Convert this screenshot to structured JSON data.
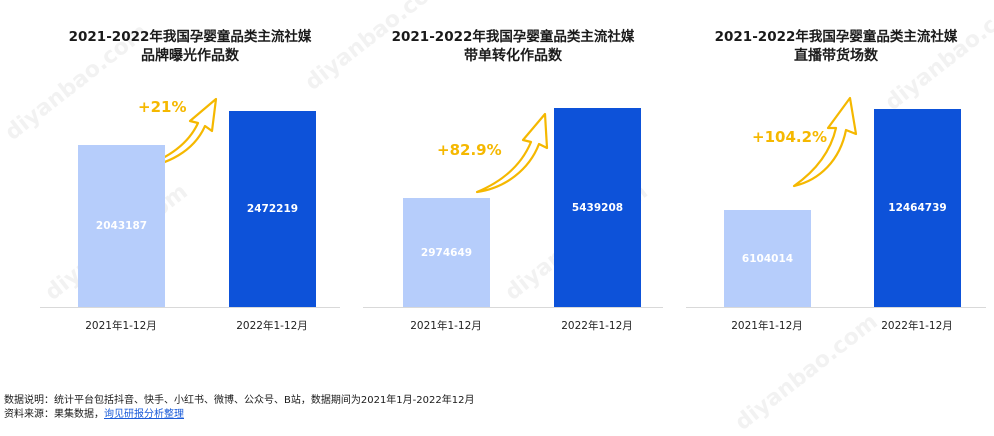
{
  "colors": {
    "bar_2021": "#b6cdfb",
    "bar_2022": "#0d52d9",
    "growth": "#f5b800"
  },
  "chart_data": [
    {
      "type": "bar",
      "title": "2021-2022年我国孕婴童品类主流社媒",
      "subtitle": "品牌曝光作品数",
      "categories": [
        "2021年1-12月",
        "2022年1-12月"
      ],
      "values": [
        2043187,
        2472219
      ],
      "value_labels": [
        "2043187",
        "2472219"
      ],
      "growth": "+21%",
      "ylim": [
        0,
        2900000
      ]
    },
    {
      "type": "bar",
      "title": "2021-2022年我国孕婴童品类主流社媒",
      "subtitle": "带单转化作品数",
      "categories": [
        "2021年1-12月",
        "2022年1-12月"
      ],
      "values": [
        2974649,
        5439208
      ],
      "value_labels": [
        "2974649",
        "5439208"
      ],
      "growth": "+82.9%",
      "ylim": [
        0,
        6300000
      ]
    },
    {
      "type": "bar",
      "title": "2021-2022年我国孕婴童品类主流社媒",
      "subtitle": "直播带货场数",
      "categories": [
        "2021年1-12月",
        "2022年1-12月"
      ],
      "values": [
        6104014,
        12464739
      ],
      "value_labels": [
        "6104014",
        "12464739"
      ],
      "growth": "+104.2%",
      "ylim": [
        0,
        14500000
      ]
    }
  ],
  "notes": {
    "line1": "数据说明：统计平台包括抖音、快手、小红书、微博、公众号、B站，数据期间为2021年1月-2022年12月",
    "line2_prefix": "资料来源：果集数据，",
    "line2_link": "询见研报分析整理"
  },
  "watermark": "diyanbao.com"
}
